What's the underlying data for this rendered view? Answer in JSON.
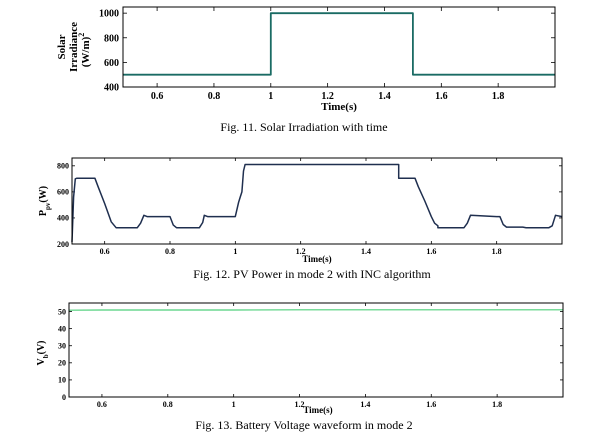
{
  "chart_data": [
    {
      "type": "line",
      "caption": "Fig. 11.  Solar Irradiation with time",
      "xlabel": "Time(s)",
      "ylabel_line1": "Solar",
      "ylabel_line2": "Irradiance",
      "ylabel_line3": "(W/m)",
      "ylabel_sup": "2",
      "xlim": [
        0.48,
        2.0
      ],
      "ylim": [
        400,
        1050
      ],
      "xticks": [
        0.6,
        0.8,
        1,
        1.2,
        1.4,
        1.6,
        1.8
      ],
      "xtick_labels": [
        "0.6",
        "0.8",
        "1",
        "1.2",
        "1.4",
        "1.6",
        "1.8"
      ],
      "yticks": [
        400,
        600,
        800,
        1000
      ],
      "ytick_labels": [
        "400",
        "600",
        "800",
        "1000"
      ],
      "line_color": "#1a6b64",
      "series": [
        {
          "x": [
            0.48,
            1.0,
            1.0,
            1.5,
            1.5,
            2.0
          ],
          "y": [
            500,
            500,
            1000,
            1000,
            500,
            500
          ]
        }
      ]
    },
    {
      "type": "line",
      "caption": "Fig. 12.  PV Power in mode 2 with INC algorithm",
      "xlabel": "Time(s)",
      "ylabel_main": "P",
      "ylabel_sub": "pv",
      "ylabel_unit": "(W)",
      "xlim": [
        0.5,
        2.0
      ],
      "ylim": [
        200,
        860
      ],
      "xticks": [
        0.6,
        0.8,
        1,
        1.2,
        1.4,
        1.6,
        1.8
      ],
      "xtick_labels": [
        "0.6",
        "0.8",
        "1",
        "1.2",
        "1.4",
        "1.6",
        "1.8"
      ],
      "yticks": [
        200,
        400,
        600,
        800
      ],
      "ytick_labels": [
        "200",
        "400",
        "600",
        "800"
      ],
      "line_color": "#1f2f4f",
      "series": [
        {
          "x": [
            0.5,
            0.505,
            0.51,
            0.515,
            0.52,
            0.57,
            0.58,
            0.6,
            0.62,
            0.635,
            0.65,
            0.7,
            0.71,
            0.72,
            0.73,
            0.8,
            0.81,
            0.82,
            0.83,
            0.89,
            0.9,
            0.905,
            0.915,
            0.97,
            0.98,
            1.0,
            1.01,
            1.015,
            1.02,
            1.025,
            1.03,
            1.5,
            1.5,
            1.55,
            1.56,
            1.58,
            1.6,
            1.61,
            1.62,
            1.62,
            1.69,
            1.7,
            1.71,
            1.72,
            1.8,
            1.81,
            1.82,
            1.83,
            1.88,
            1.89,
            1.9,
            1.96,
            1.97,
            1.98,
            2.0
          ],
          "y": [
            215,
            560,
            700,
            705,
            705,
            705,
            640,
            510,
            370,
            325,
            325,
            325,
            360,
            420,
            410,
            410,
            345,
            325,
            325,
            325,
            365,
            420,
            410,
            410,
            410,
            410,
            520,
            560,
            600,
            760,
            810,
            810,
            705,
            705,
            640,
            530,
            410,
            360,
            340,
            325,
            325,
            325,
            360,
            420,
            410,
            410,
            350,
            330,
            330,
            325,
            325,
            325,
            340,
            420,
            410
          ]
        }
      ]
    },
    {
      "type": "line",
      "caption": "Fig. 13.  Battery Voltage waveform in mode 2",
      "xlabel": "Time(s)",
      "ylabel_main": "V",
      "ylabel_sub": "b",
      "ylabel_unit": "(V)",
      "xlim": [
        0.5,
        2.0
      ],
      "ylim": [
        0,
        55
      ],
      "xticks": [
        0.6,
        0.8,
        1,
        1.2,
        1.4,
        1.6,
        1.8
      ],
      "xtick_labels": [
        "0.6",
        "0.8",
        "1",
        "1.2",
        "1.4",
        "1.6",
        "1.8"
      ],
      "yticks": [
        0,
        10,
        20,
        30,
        40,
        50
      ],
      "ytick_labels": [
        "0",
        "10",
        "20",
        "30",
        "40",
        "50"
      ],
      "line_color": "#4ecf7a",
      "series": [
        {
          "x": [
            0.5,
            0.6,
            0.8,
            1.0,
            1.2,
            1.4,
            1.6,
            1.8,
            2.0
          ],
          "y": [
            50.8,
            50.9,
            50.9,
            50.9,
            51.0,
            51.0,
            51.0,
            51.0,
            51.0
          ]
        }
      ]
    }
  ]
}
